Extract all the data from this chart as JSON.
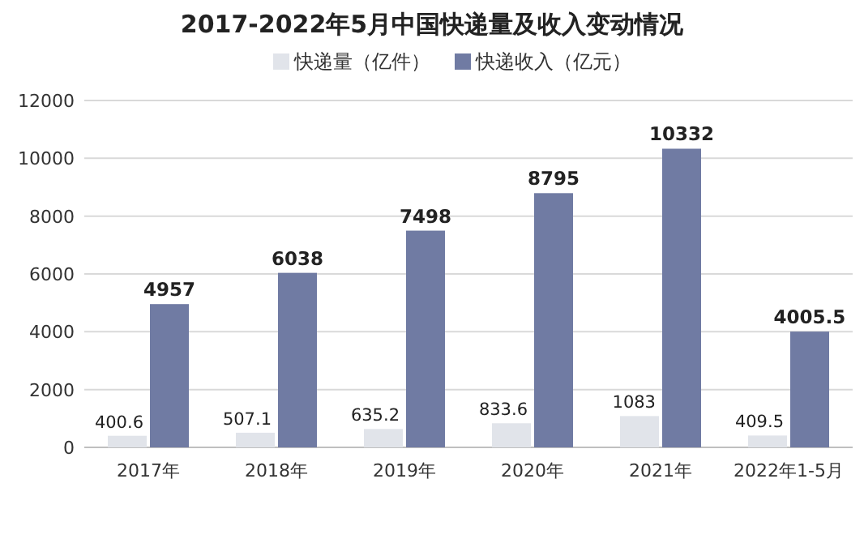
{
  "chart_data": {
    "type": "bar",
    "title": "2017-2022年5月中国快递量及收入变动情况",
    "categories": [
      "2017年",
      "2018年",
      "2019年",
      "2020年",
      "2021年",
      "2022年1-5月"
    ],
    "series": [
      {
        "name": "快递量（亿件）",
        "color": "#e1e4ea",
        "values": [
          400.6,
          507.1,
          635.2,
          833.6,
          1083,
          409.5
        ]
      },
      {
        "name": "快递收入（亿元）",
        "color": "#707ba3",
        "values": [
          4957,
          6038,
          7498,
          8795,
          10332,
          4005.5
        ]
      }
    ],
    "ylim": [
      0,
      12000
    ],
    "yticks": [
      0,
      2000,
      4000,
      6000,
      8000,
      10000,
      12000
    ],
    "grid": "y",
    "legend": "top",
    "data_labels": true
  }
}
